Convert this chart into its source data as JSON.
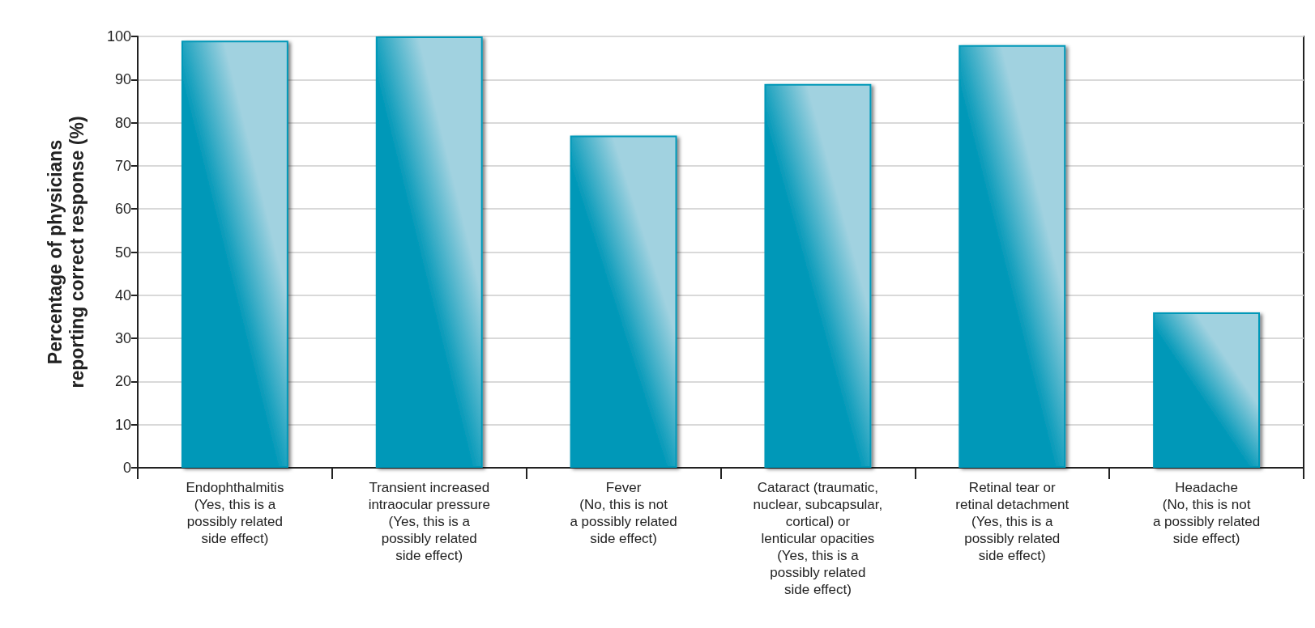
{
  "chart_data": {
    "type": "bar",
    "ylabel": "Percentage of physicians\nreporting correct response (%)",
    "categories": [
      "Endophthalmitis\n(Yes, this is a\npossibly related\nside effect)",
      "Transient increased\nintraocular pressure\n(Yes, this is a\npossibly related\nside effect)",
      "Fever\n(No, this is not\na possibly related\nside effect)",
      "Cataract (traumatic,\nnuclear, subcapsular,\ncortical) or\nlenticular opacities\n(Yes, this is a\npossibly related\nside effect)",
      "Retinal tear or\nretinal detachment\n(Yes, this is a\npossibly related\nside effect)",
      "Headache\n(No, this is not\na possibly related\nside effect)"
    ],
    "values": [
      99,
      100,
      77,
      89,
      98,
      36
    ],
    "color": "#0098b8",
    "ylim": [
      0,
      100
    ],
    "yticks": [
      0,
      10,
      20,
      30,
      40,
      50,
      60,
      70,
      80,
      90,
      100
    ],
    "grid": "y"
  }
}
